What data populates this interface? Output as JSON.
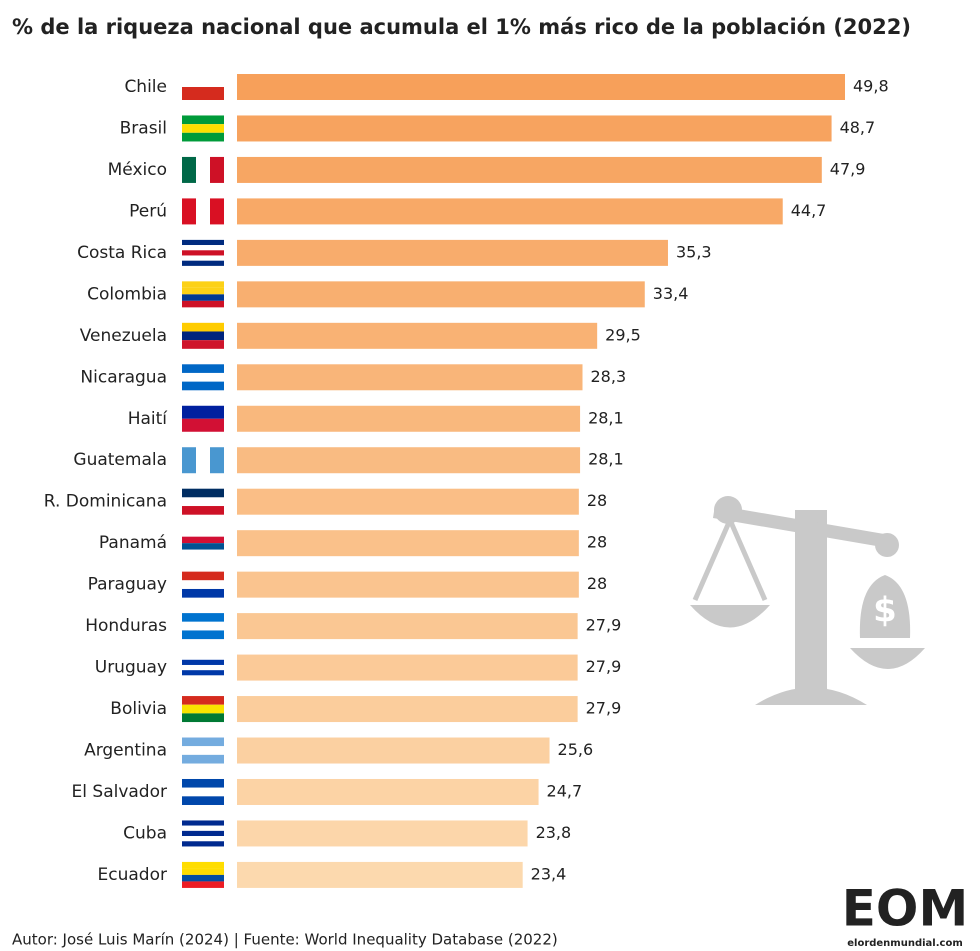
{
  "chart_data": {
    "type": "hbar",
    "title": "% de la riqueza nacional que acumula el 1% más rico de la población (2022)",
    "categories": [
      "Chile",
      "Brasil",
      "México",
      "Perú",
      "Costa Rica",
      "Colombia",
      "Venezuela",
      "Nicaragua",
      "Haití",
      "Guatemala",
      "R. Dominicana",
      "Panamá",
      "Paraguay",
      "Honduras",
      "Uruguay",
      "Bolivia",
      "Argentina",
      "El Salvador",
      "Cuba",
      "Ecuador"
    ],
    "values": [
      49.8,
      48.7,
      47.9,
      44.7,
      35.3,
      33.4,
      29.5,
      28.3,
      28.1,
      28.1,
      28,
      28,
      28,
      27.9,
      27.9,
      27.9,
      25.6,
      24.7,
      23.8,
      23.4
    ],
    "value_labels": [
      "49,8",
      "48,7",
      "47,9",
      "44,7",
      "35,3",
      "33,4",
      "29,5",
      "28,3",
      "28,1",
      "28,1",
      "28",
      "28",
      "28",
      "27,9",
      "27,9",
      "27,9",
      "25,6",
      "24,7",
      "23,8",
      "23,4"
    ],
    "colors": [
      "#f7a05a",
      "#f7a35f",
      "#f7a663",
      "#f8a967",
      "#f8ac6c",
      "#f8af70",
      "#f9b274",
      "#f9b579",
      "#f9b87d",
      "#f9bb82",
      "#fabe86",
      "#fac18a",
      "#fac48f",
      "#fac793",
      "#fbca98",
      "#fbcd9c",
      "#fbd0a1",
      "#fcd3a5",
      "#fcd6aa",
      "#fcd9ae"
    ],
    "footer": "Autor: José Luis Marín  (2024) | Fuente: World Inequality Database (2022)",
    "logo": "EOM",
    "logo_url": "elordenmundial.com"
  }
}
